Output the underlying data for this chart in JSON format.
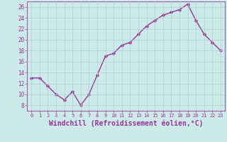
{
  "x": [
    0,
    1,
    2,
    3,
    4,
    5,
    6,
    7,
    8,
    9,
    10,
    11,
    12,
    13,
    14,
    15,
    16,
    17,
    18,
    19,
    20,
    21,
    22,
    23
  ],
  "y": [
    13,
    13,
    11.5,
    10,
    9,
    10.5,
    8,
    10,
    13.5,
    17,
    17.5,
    19,
    19.5,
    21,
    22.5,
    23.5,
    24.5,
    25,
    25.5,
    26.5,
    23.5,
    21,
    19.5,
    18
  ],
  "line_color": "#993399",
  "marker": "D",
  "markersize": 2.2,
  "linewidth": 1.0,
  "xlabel": "Windchill (Refroidissement éolien,°C)",
  "xlabel_fontsize": 7,
  "xlim": [
    -0.5,
    23.5
  ],
  "ylim": [
    7,
    27
  ],
  "yticks": [
    8,
    10,
    12,
    14,
    16,
    18,
    20,
    22,
    24,
    26
  ],
  "xticks": [
    0,
    1,
    2,
    3,
    4,
    5,
    6,
    7,
    8,
    9,
    10,
    11,
    12,
    13,
    14,
    15,
    16,
    17,
    18,
    19,
    20,
    21,
    22,
    23
  ],
  "grid_color": "#b0d0d0",
  "bg_color": "#cceaea",
  "tick_color": "#993399",
  "xtick_fontsize": 5.0,
  "ytick_fontsize": 5.5
}
